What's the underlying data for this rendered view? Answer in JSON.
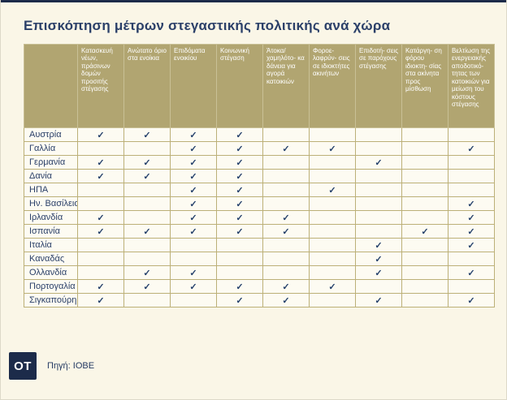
{
  "page": {
    "title": "Επισκόπηση μέτρων στεγαστικής πολιτικής ανά χώρα",
    "logo_text": "OT",
    "source_label": "Πηγή: ΙΟΒΕ"
  },
  "colors": {
    "accent_navy": "#1c2b4a",
    "title_navy": "#2b4069",
    "header_khaki": "#b1a571",
    "grid_khaki": "#bcb078",
    "page_cream": "#faf6e7",
    "check_navy": "#24406b"
  },
  "chart_data": {
    "type": "table",
    "title": "Επισκόπηση μέτρων στεγαστικής πολιτικής ανά χώρα",
    "source": "Πηγή: ΙΟΒΕ",
    "check_glyph": "✓",
    "columns": [
      "Κατασκευή νέων, πράσινων δομών προσιτής στέγασης",
      "Ανώτατο όριο στα ενοίκια",
      "Επιδόματα ενοικίου",
      "Κοινωνική στέγαση",
      "Άτοκα/ χαμηλότο- κα δάνεια για αγορά κατοικιών",
      "Φοροε- λαφρύν- σεις σε ιδιοκτήτες ακινήτων",
      "Επιδοτή- σεις σε παρόχους στέγασης",
      "Κατάργη- ση φόρου ιδιοκτη- σίας στα ακίνητα προς μίσθωση",
      "Βελτίωση της ενεργειακής αποδοτικό- τητας των κατοικιών για μείωση του κόστους στέγασης"
    ],
    "rows": [
      {
        "country": "Αυστρία",
        "checks": [
          1,
          1,
          1,
          1,
          0,
          0,
          0,
          0,
          0
        ]
      },
      {
        "country": "Γαλλία",
        "checks": [
          0,
          0,
          1,
          1,
          1,
          1,
          0,
          0,
          1
        ]
      },
      {
        "country": "Γερμανία",
        "checks": [
          1,
          1,
          1,
          1,
          0,
          0,
          1,
          0,
          0
        ]
      },
      {
        "country": "Δανία",
        "checks": [
          1,
          1,
          1,
          1,
          0,
          0,
          0,
          0,
          0
        ]
      },
      {
        "country": "ΗΠΑ",
        "checks": [
          0,
          0,
          1,
          1,
          0,
          1,
          0,
          0,
          0
        ]
      },
      {
        "country": "Ην. Βασίλειο",
        "checks": [
          0,
          0,
          1,
          1,
          0,
          0,
          0,
          0,
          1
        ]
      },
      {
        "country": "Ιρλανδία",
        "checks": [
          1,
          0,
          1,
          1,
          1,
          0,
          0,
          0,
          1
        ]
      },
      {
        "country": "Ισπανία",
        "checks": [
          1,
          1,
          1,
          1,
          1,
          0,
          0,
          1,
          1
        ]
      },
      {
        "country": "Ιταλία",
        "checks": [
          0,
          0,
          0,
          0,
          0,
          0,
          1,
          0,
          1
        ]
      },
      {
        "country": "Καναδάς",
        "checks": [
          0,
          0,
          0,
          0,
          0,
          0,
          1,
          0,
          0
        ]
      },
      {
        "country": "Ολλανδία",
        "checks": [
          0,
          1,
          1,
          0,
          0,
          0,
          1,
          0,
          1
        ]
      },
      {
        "country": "Πορτογαλία",
        "checks": [
          1,
          1,
          1,
          1,
          1,
          1,
          0,
          0,
          0
        ]
      },
      {
        "country": "Σιγκαπούρη",
        "checks": [
          1,
          0,
          0,
          1,
          1,
          0,
          1,
          0,
          1
        ]
      }
    ]
  }
}
